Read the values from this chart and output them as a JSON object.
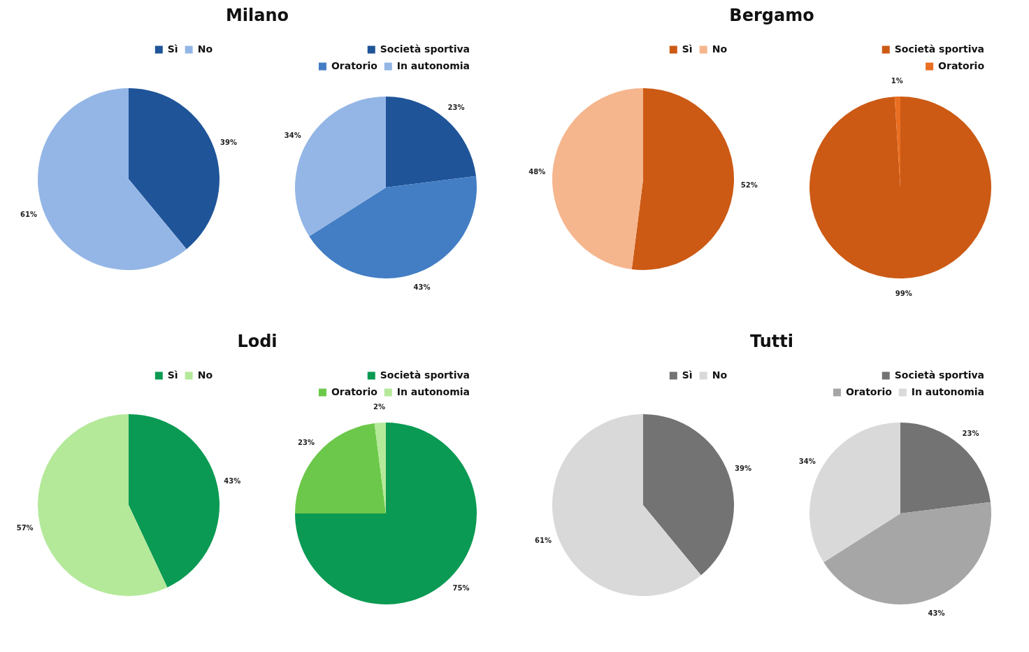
{
  "chart_data": [
    {
      "type": "pie",
      "title": "Milano",
      "categories": [
        "Sì",
        "No"
      ],
      "values": [
        39,
        61
      ],
      "value_labels": [
        "39%",
        "61%"
      ],
      "colors": [
        "#1f5499",
        "#94b6e6"
      ],
      "legend": "top"
    },
    {
      "type": "pie",
      "categories": [
        "Società sportiva",
        "Oratorio",
        "In autonomia"
      ],
      "values": [
        23,
        43,
        34
      ],
      "value_labels": [
        "23%",
        "43%",
        "34%"
      ],
      "colors": [
        "#1f5499",
        "#437ec4",
        "#94b6e6"
      ],
      "legend": "top"
    },
    {
      "type": "pie",
      "title": "Bergamo",
      "categories": [
        "Sì",
        "No"
      ],
      "values": [
        52,
        48
      ],
      "value_labels": [
        "52%",
        "48%"
      ],
      "colors": [
        "#cc5a15",
        "#f5b68e"
      ],
      "legend": "top"
    },
    {
      "type": "pie",
      "categories": [
        "Società sportiva",
        "Oratorio"
      ],
      "values": [
        99,
        1
      ],
      "value_labels": [
        "99%",
        "1%"
      ],
      "colors": [
        "#cc5a15",
        "#ea6f22"
      ],
      "legend": "top"
    },
    {
      "type": "pie",
      "title": "Lodi",
      "categories": [
        "Sì",
        "No"
      ],
      "values": [
        43,
        57
      ],
      "value_labels": [
        "43%",
        "57%"
      ],
      "colors": [
        "#0a9a53",
        "#b4e99a"
      ],
      "legend": "top"
    },
    {
      "type": "pie",
      "categories": [
        "Società sportiva",
        "Oratorio",
        "In autonomia"
      ],
      "values": [
        75,
        23,
        2
      ],
      "value_labels": [
        "75%",
        "23%",
        "2%"
      ],
      "colors": [
        "#0a9a53",
        "#6cc84a",
        "#b4e99a"
      ],
      "legend": "top"
    },
    {
      "type": "pie",
      "title": "Tutti",
      "categories": [
        "Sì",
        "No"
      ],
      "values": [
        39,
        61
      ],
      "value_labels": [
        "39%",
        "61%"
      ],
      "colors": [
        "#737373",
        "#d9d9d9"
      ],
      "legend": "top"
    },
    {
      "type": "pie",
      "categories": [
        "Società sportiva",
        "Oratorio",
        "In autonomia"
      ],
      "values": [
        23,
        43,
        34
      ],
      "value_labels": [
        "23%",
        "43%",
        "34%"
      ],
      "colors": [
        "#737373",
        "#a6a6a6",
        "#d9d9d9"
      ],
      "legend": "top"
    }
  ]
}
